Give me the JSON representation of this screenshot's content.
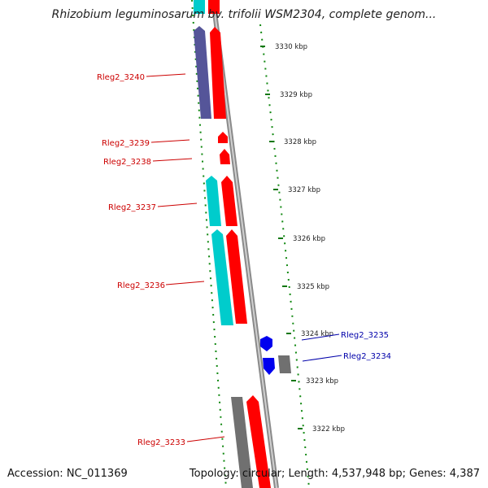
{
  "title": "Rhizobium leguminosarum bv. trifolii WSM2304, complete genom...",
  "footer": {
    "accession": "Accession: NC_011369",
    "topology": "Topology: circular; Length: 4,537,948 bp; Genes: 4,387"
  },
  "colors": {
    "forward_cds": "#ff0000",
    "reverse_cds": "#00cccc",
    "forward_other": "#0000ee",
    "reverse_other": "#555599",
    "gray_feature": "#707070",
    "label_forward": "#cc0000",
    "label_reverse": "#0000aa",
    "tick": "#117711"
  },
  "scale": {
    "ticks": [
      {
        "label": "3330 kbp"
      },
      {
        "label": "3329 kbp"
      },
      {
        "label": "3328 kbp"
      },
      {
        "label": "3327 kbp"
      },
      {
        "label": "3326 kbp"
      },
      {
        "label": "3325 kbp"
      },
      {
        "label": "3324 kbp"
      },
      {
        "label": "3323 kbp"
      },
      {
        "label": "3322 kbp"
      }
    ]
  },
  "gene_labels": [
    {
      "id": "Rleg2_3240",
      "text": "Rleg2_3240",
      "side": "left"
    },
    {
      "id": "Rleg2_3239",
      "text": "Rleg2_3239",
      "side": "left"
    },
    {
      "id": "Rleg2_3238",
      "text": "Rleg2_3238",
      "side": "left"
    },
    {
      "id": "Rleg2_3237",
      "text": "Rleg2_3237",
      "side": "left"
    },
    {
      "id": "Rleg2_3236",
      "text": "Rleg2_3236",
      "side": "left"
    },
    {
      "id": "Rleg2_3235",
      "text": "Rleg2_3235",
      "side": "right"
    },
    {
      "id": "Rleg2_3234",
      "text": "Rleg2_3234",
      "side": "right"
    },
    {
      "id": "Rleg2_3233",
      "text": "Rleg2_3233",
      "side": "left"
    }
  ]
}
